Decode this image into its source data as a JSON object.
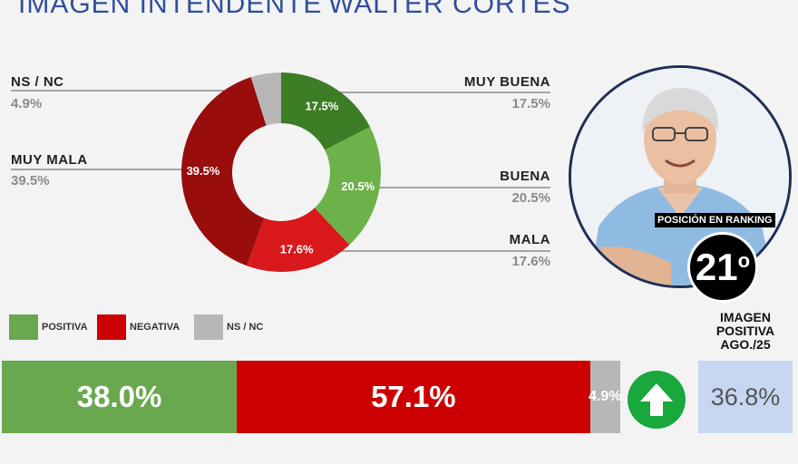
{
  "header": {
    "left_title": "IMAGEN INTENDENTE",
    "right_title": "WALTER CORTES"
  },
  "chart_data": [
    {
      "type": "pie",
      "donut": true,
      "slices": [
        {
          "label": "MUY BUENA",
          "value": 17.5,
          "display": "17.5%",
          "color": "#3d7d25"
        },
        {
          "label": "BUENA",
          "value": 20.5,
          "display": "20.5%",
          "color": "#6db14a"
        },
        {
          "label": "MALA",
          "value": 17.6,
          "display": "17.6%",
          "color": "#d9181b"
        },
        {
          "label": "MUY MALA",
          "value": 39.5,
          "display": "39.5%",
          "color": "#990d0d"
        },
        {
          "label": "NS / NC",
          "value": 4.9,
          "display": "4.9%",
          "color": "#b7b7b7"
        }
      ]
    },
    {
      "type": "bar",
      "stacked": true,
      "orientation": "horizontal",
      "legend_placement": "top-left",
      "legend": [
        {
          "label": "POSITIVA",
          "color": "#6aa84f"
        },
        {
          "label": "NEGATIVA",
          "color": "#cc0000"
        },
        {
          "label": "NS / NC",
          "color": "#b7b7b7"
        }
      ],
      "series": [
        {
          "name": "POSITIVA",
          "value": 38.0,
          "display": "38.0%",
          "color": "#6aa84f"
        },
        {
          "name": "NEGATIVA",
          "value": 57.1,
          "display": "57.1%",
          "color": "#cc0000"
        },
        {
          "name": "NS / NC",
          "value": 4.9,
          "display": "4.9%",
          "color": "#b7b7b7"
        }
      ]
    }
  ],
  "ranking": {
    "caption": "POSICIÓN EN RANKING",
    "number": "21",
    "suffix": "o"
  },
  "image_positive": {
    "label_lines": [
      "IMAGEN",
      "POSITIVA",
      "AGO./25"
    ],
    "value": "36.8%"
  },
  "icons": {
    "trend": "arrow-up-icon",
    "photo": "portrait-photo"
  }
}
